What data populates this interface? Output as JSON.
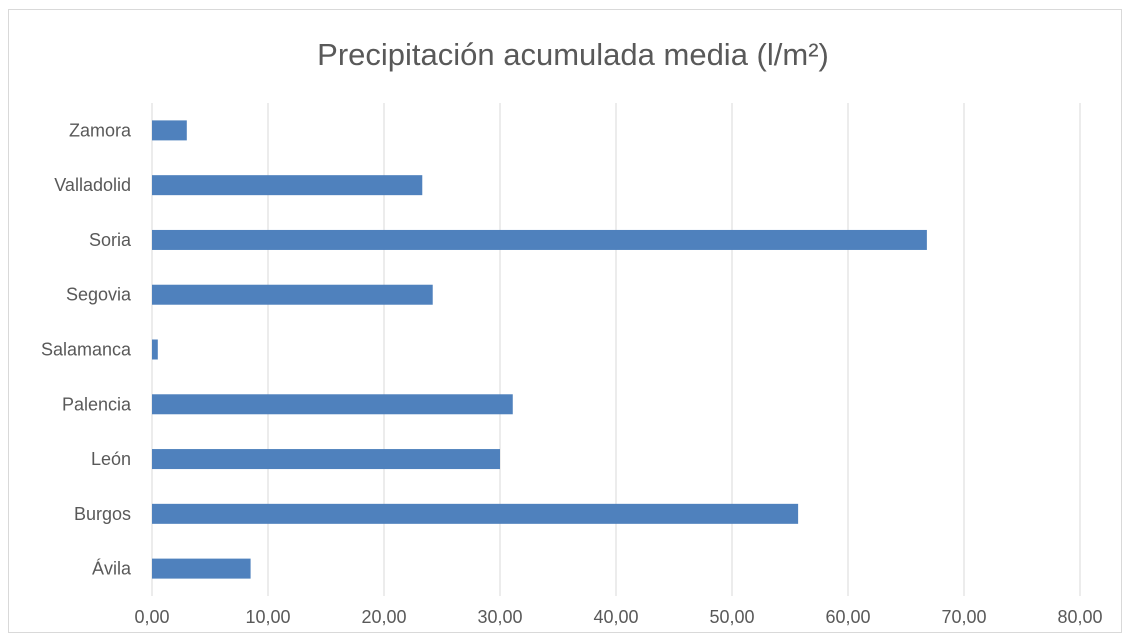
{
  "chart_data": {
    "type": "bar",
    "orientation": "horizontal",
    "title": "Precipitación acumulada media (l/m²)",
    "categories": [
      "Ávila",
      "Burgos",
      "León",
      "Palencia",
      "Salamanca",
      "Segovia",
      "Soria",
      "Valladolid",
      "Zamora"
    ],
    "values": [
      8.5,
      55.7,
      30.0,
      31.1,
      0.5,
      24.2,
      66.8,
      23.3,
      3.0
    ],
    "xlim": [
      0,
      80
    ],
    "x_ticks": [
      "0,00",
      "10,00",
      "20,00",
      "30,00",
      "40,00",
      "50,00",
      "60,00",
      "70,00",
      "80,00"
    ],
    "xlabel": "",
    "ylabel": "",
    "grid": "vertical",
    "legend": "none",
    "colors": {
      "bar": "#4f81bd",
      "grid": "#d9d9d9",
      "text": "#595959"
    }
  }
}
